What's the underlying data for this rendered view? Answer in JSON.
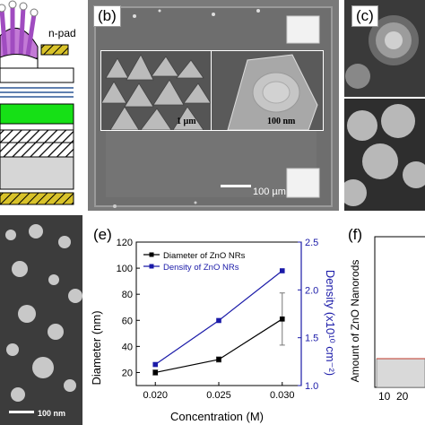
{
  "figure": {
    "panel_a": {
      "label": "n-pad"
    },
    "panel_b": {
      "label": "(b)",
      "inset_left_scale": "1 µm",
      "inset_right_scale": "100 nm",
      "scale": "100 µm"
    },
    "panel_c": {
      "label": "(c)"
    },
    "panel_d": {
      "scale": "100 nm"
    },
    "panel_e": {
      "label": "(e)"
    },
    "panel_f": {
      "label": "(f)",
      "ylabel": "Amount of ZnO Nanorods",
      "xticks": [
        "10",
        "20"
      ]
    }
  },
  "chart_data": {
    "type": "line",
    "xlabel": "Concentration (M)",
    "ylabel": "Diameter (nm)",
    "ylabel_right": "Density (x10¹⁰ cm⁻²)",
    "xlim": [
      0.0185,
      0.0315
    ],
    "ylim": [
      10,
      120
    ],
    "ylim_right": [
      1.0,
      2.5
    ],
    "xticks": [
      "0.020",
      "0.025",
      "0.030"
    ],
    "yticks": [
      "20",
      "40",
      "60",
      "80",
      "100",
      "120"
    ],
    "yticks_right": [
      "1.0",
      "1.5",
      "2.0",
      "2.5"
    ],
    "x": [
      0.02,
      0.025,
      0.03
    ],
    "series": [
      {
        "name": "Diameter of ZnO NRs",
        "axis": "left",
        "color": "#000000",
        "values": [
          20,
          30,
          61
        ],
        "error": [
          2,
          2,
          20
        ]
      },
      {
        "name": "Density of ZnO NRs",
        "axis": "right",
        "color": "#1a1aa8",
        "values": [
          1.22,
          1.68,
          2.2
        ]
      }
    ],
    "legend": "top-left"
  }
}
